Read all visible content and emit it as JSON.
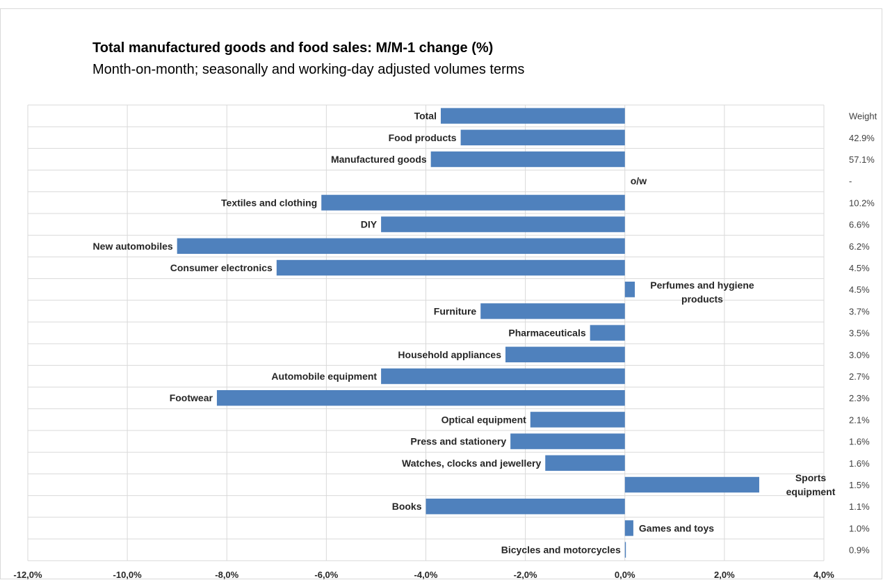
{
  "chart_data": {
    "type": "bar",
    "orientation": "horizontal",
    "title": "Total manufactured goods and food sales: M/M-1 change (%)",
    "subtitle": "Month-on-month; seasonally and working-day adjusted volumes terms",
    "xlim": [
      -12,
      4
    ],
    "x_ticks": [
      "-12,0%",
      "-10,0%",
      "-8,0%",
      "-6,0%",
      "-4,0%",
      "-2,0%",
      "0,0%",
      "2,0%",
      "4,0%"
    ],
    "grid": true,
    "weight_header": "Weight",
    "categories": [
      "Total",
      "Food products",
      "Manufactured goods",
      "o/w",
      "Textiles and clothing",
      "DIY",
      "New automobiles",
      "Consumer electronics",
      "Perfumes and hygiene products",
      "Furniture",
      "Pharmaceuticals",
      "Household appliances",
      "Automobile equipment",
      "Footwear",
      "Optical equipment",
      "Press and stationery",
      "Watches, clocks and jewellery",
      "Sports equipment",
      "Books",
      "Games and toys",
      "Bicycles and motorcycles"
    ],
    "values": [
      -3.7,
      -3.3,
      -3.9,
      null,
      -6.1,
      -4.9,
      -9.0,
      -7.0,
      0.2,
      -2.9,
      -0.7,
      -2.4,
      -4.9,
      -8.2,
      -1.9,
      -2.3,
      -1.6,
      2.7,
      -4.0,
      0.17,
      0.02
    ],
    "weights": [
      "",
      "42.9%",
      "57.1%",
      "-",
      "10.2%",
      "6.6%",
      "6.2%",
      "4.5%",
      "4.5%",
      "3.7%",
      "3.5%",
      "3.0%",
      "2.7%",
      "2.3%",
      "2.1%",
      "1.6%",
      "1.6%",
      "1.5%",
      "1.1%",
      "1.0%",
      "0.9%"
    ],
    "bar_color": "#4f81bd",
    "grid_color": "#d9d9d9"
  }
}
